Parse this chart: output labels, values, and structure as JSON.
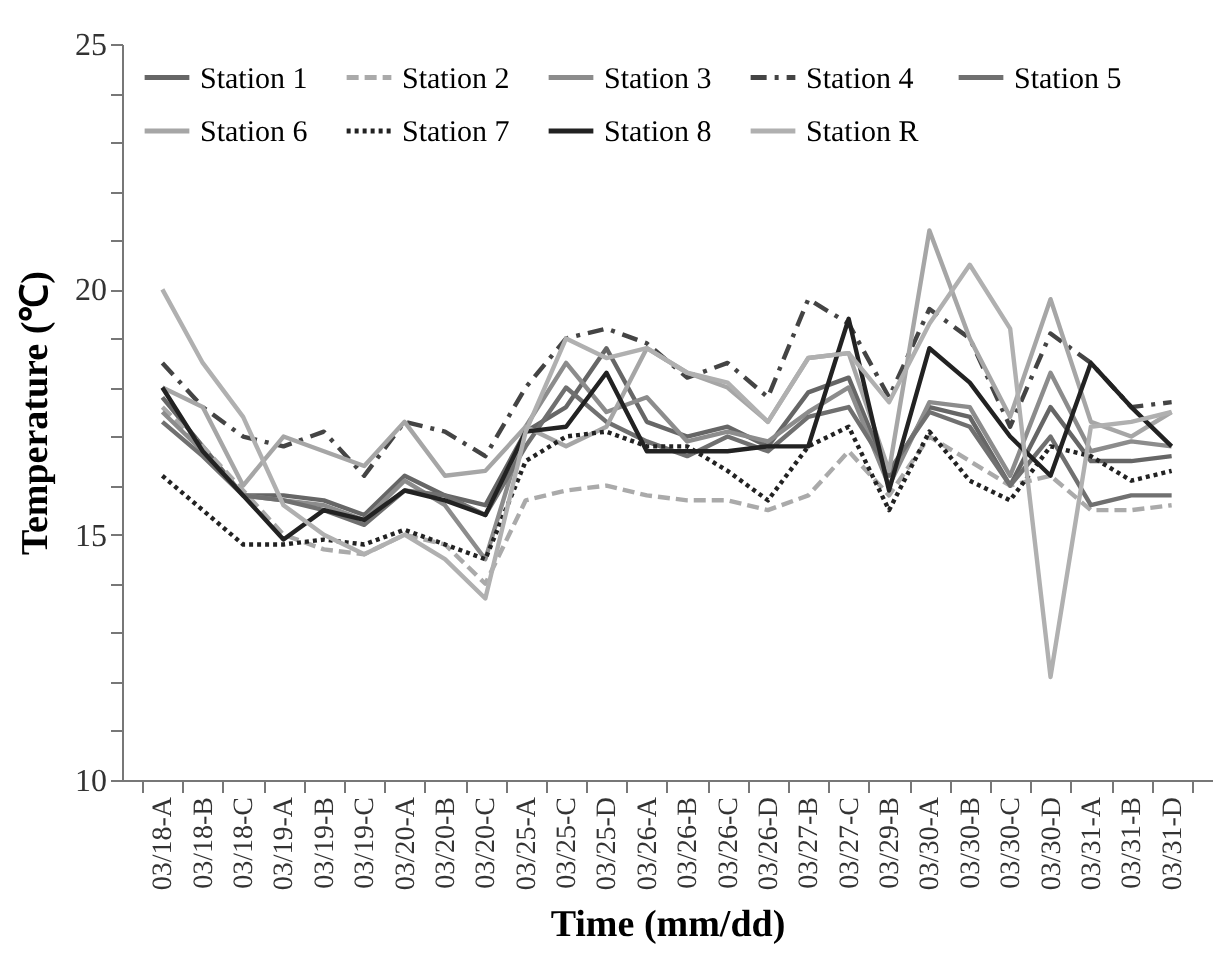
{
  "chart_data": {
    "type": "line",
    "xlabel": "Time (mm/dd)",
    "ylabel": "Temperature (℃)",
    "categories": [
      "03/18-A",
      "03/18-B",
      "03/18-C",
      "03/19-A",
      "03/19-B",
      "03/19-C",
      "03/20-A",
      "03/20-B",
      "03/20-C",
      "03/25-A",
      "03/25-C",
      "03/25-D",
      "03/26-A",
      "03/26-B",
      "03/26-C",
      "03/26-D",
      "03/27-B",
      "03/27-C",
      "03/29-B",
      "03/30-A",
      "03/30-B",
      "03/30-C",
      "03/30-D",
      "03/31-A",
      "03/31-B",
      "03/31-D"
    ],
    "ylim": [
      10,
      25
    ],
    "yticks": [
      10,
      {
        "value": 11,
        "label": null
      },
      {
        "value": 12,
        "label": null
      },
      {
        "value": 13,
        "label": null
      },
      {
        "value": 14,
        "label": null
      },
      15,
      {
        "value": 16,
        "label": null
      },
      {
        "value": 17,
        "label": null
      },
      {
        "value": 18,
        "label": null
      },
      {
        "value": 19,
        "label": null
      },
      20,
      {
        "value": 21,
        "label": null
      },
      {
        "value": 22,
        "label": null
      },
      {
        "value": 23,
        "label": null
      },
      {
        "value": 24,
        "label": null
      },
      25
    ],
    "grid": false,
    "legend": "top",
    "marker": "none",
    "series": [
      {
        "name": "Station 1",
        "color": "#666666",
        "line_style": "solid",
        "values": [
          17.8,
          16.8,
          15.8,
          15.8,
          15.7,
          15.4,
          16.2,
          15.8,
          15.6,
          17.1,
          17.6,
          18.8,
          17.3,
          17.0,
          17.2,
          16.8,
          17.9,
          18.2,
          16.2,
          17.6,
          17.4,
          16.0,
          17.6,
          16.5,
          16.5,
          16.6
        ]
      },
      {
        "name": "Station 2",
        "color": "#aaaaaa",
        "line_style": "dashed",
        "values": [
          17.6,
          16.8,
          15.9,
          15.0,
          14.7,
          14.6,
          15.0,
          14.8,
          14.0,
          15.7,
          15.9,
          16.0,
          15.8,
          15.7,
          15.7,
          15.5,
          15.8,
          16.7,
          15.8,
          17.0,
          16.5,
          16.0,
          16.2,
          15.5,
          15.5,
          15.6
        ]
      },
      {
        "name": "Station 3",
        "color": "#8c8c8c",
        "line_style": "solid",
        "values": [
          17.5,
          16.7,
          15.8,
          15.7,
          15.6,
          15.3,
          16.1,
          15.6,
          14.5,
          17.2,
          18.5,
          17.5,
          17.8,
          16.9,
          17.1,
          16.9,
          17.5,
          18.0,
          16.0,
          17.7,
          17.6,
          16.2,
          18.3,
          16.7,
          16.9,
          16.8
        ]
      },
      {
        "name": "Station 4",
        "color": "#444444",
        "line_style": "dashdot",
        "values": [
          18.5,
          17.6,
          17.0,
          16.8,
          17.1,
          16.2,
          17.3,
          17.1,
          16.6,
          18.0,
          19.0,
          19.2,
          18.9,
          18.2,
          18.5,
          17.8,
          19.8,
          19.3,
          17.8,
          19.6,
          19.0,
          17.2,
          19.1,
          18.5,
          17.6,
          17.7
        ]
      },
      {
        "name": "Station 5",
        "color": "#707070",
        "line_style": "solid",
        "values": [
          17.3,
          16.6,
          15.8,
          15.7,
          15.5,
          15.2,
          15.9,
          15.8,
          15.4,
          16.8,
          18.0,
          17.3,
          16.9,
          16.6,
          17.0,
          16.7,
          17.4,
          17.6,
          16.3,
          17.5,
          17.2,
          16.0,
          17.0,
          15.6,
          15.8,
          15.8
        ]
      },
      {
        "name": "Station 6",
        "color": "#a6a6a6",
        "line_style": "solid",
        "values": [
          18.0,
          17.6,
          16.0,
          17.0,
          16.7,
          16.4,
          17.3,
          16.2,
          16.3,
          17.2,
          16.8,
          17.2,
          18.8,
          18.3,
          18.0,
          17.3,
          18.6,
          18.7,
          16.3,
          21.2,
          19.0,
          17.4,
          19.8,
          17.3,
          17.0,
          17.5
        ]
      },
      {
        "name": "Station 7",
        "color": "#222222",
        "line_style": "dotted",
        "values": [
          16.2,
          15.5,
          14.8,
          14.8,
          14.9,
          14.8,
          15.1,
          14.8,
          14.5,
          16.5,
          17.0,
          17.1,
          16.8,
          16.8,
          16.3,
          15.7,
          16.8,
          17.2,
          15.5,
          17.1,
          16.1,
          15.7,
          16.8,
          16.6,
          16.1,
          16.3
        ]
      },
      {
        "name": "Station 8",
        "color": "#222222",
        "line_style": "solid",
        "values": [
          18.0,
          16.7,
          15.8,
          14.9,
          15.5,
          15.3,
          15.9,
          15.7,
          15.4,
          17.1,
          17.2,
          18.3,
          16.7,
          16.7,
          16.7,
          16.8,
          16.8,
          19.4,
          15.9,
          18.8,
          18.1,
          17.0,
          16.2,
          18.5,
          17.6,
          16.8
        ]
      },
      {
        "name": "Station R",
        "color": "#b0b0b0",
        "line_style": "solid",
        "values": [
          20.0,
          18.5,
          17.4,
          15.6,
          15.0,
          14.6,
          15.0,
          14.5,
          13.7,
          17.1,
          19.0,
          18.6,
          18.8,
          18.3,
          18.1,
          17.3,
          18.6,
          18.7,
          17.7,
          19.3,
          20.5,
          19.2,
          12.1,
          17.2,
          17.3,
          17.5
        ]
      }
    ]
  }
}
